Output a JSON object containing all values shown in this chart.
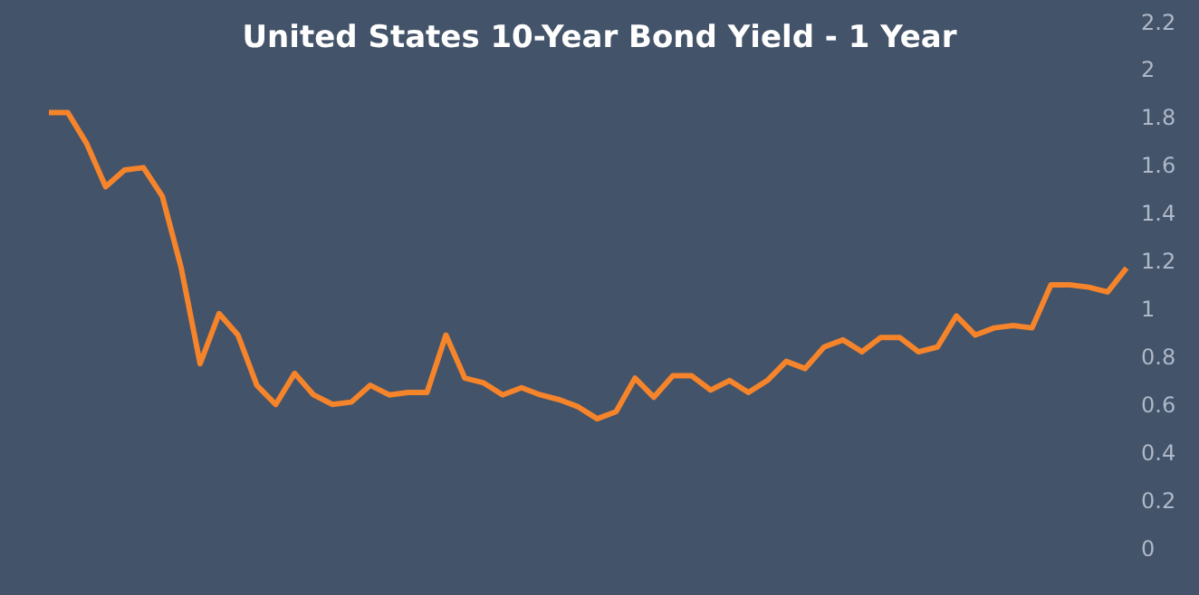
{
  "chart_data": {
    "type": "line",
    "title": "United States 10-Year Bond Yield - 1 Year",
    "categories": [
      null,
      null,
      null,
      null,
      null,
      null,
      null,
      null,
      null,
      null,
      null,
      null,
      null,
      null,
      null,
      null,
      null,
      null,
      null,
      null,
      null,
      null,
      null,
      null,
      null,
      null,
      null,
      null,
      null,
      null,
      null,
      null,
      null,
      null,
      null,
      null,
      null,
      null,
      null,
      null,
      null,
      null,
      null,
      null,
      null,
      null,
      null,
      null,
      null,
      null,
      null,
      null,
      null,
      null,
      null,
      null,
      null,
      null
    ],
    "series": [
      {
        "color": "#f5842b",
        "values": [
          1.82,
          1.82,
          1.69,
          1.51,
          1.58,
          1.59,
          1.47,
          1.17,
          0.77,
          0.98,
          0.89,
          0.68,
          0.6,
          0.73,
          0.64,
          0.6,
          0.61,
          0.68,
          0.64,
          0.65,
          0.65,
          0.89,
          0.71,
          0.69,
          0.64,
          0.67,
          0.64,
          0.62,
          0.59,
          0.54,
          0.57,
          0.71,
          0.63,
          0.72,
          0.72,
          0.66,
          0.7,
          0.65,
          0.7,
          0.78,
          0.75,
          0.84,
          0.87,
          0.82,
          0.88,
          0.88,
          0.82,
          0.84,
          0.97,
          0.89,
          0.92,
          0.93,
          0.92,
          1.1,
          1.1,
          1.09,
          1.07,
          1.17
        ]
      }
    ],
    "ylim": [
      0,
      2.2
    ],
    "yticks": [
      0,
      0.2,
      0.4,
      0.6,
      0.8,
      1,
      1.2,
      1.4,
      1.6,
      1.8,
      2,
      2.2
    ],
    "grid": false,
    "legend": false,
    "marker": "none",
    "line_style": "solid",
    "tick_labels": "y"
  }
}
